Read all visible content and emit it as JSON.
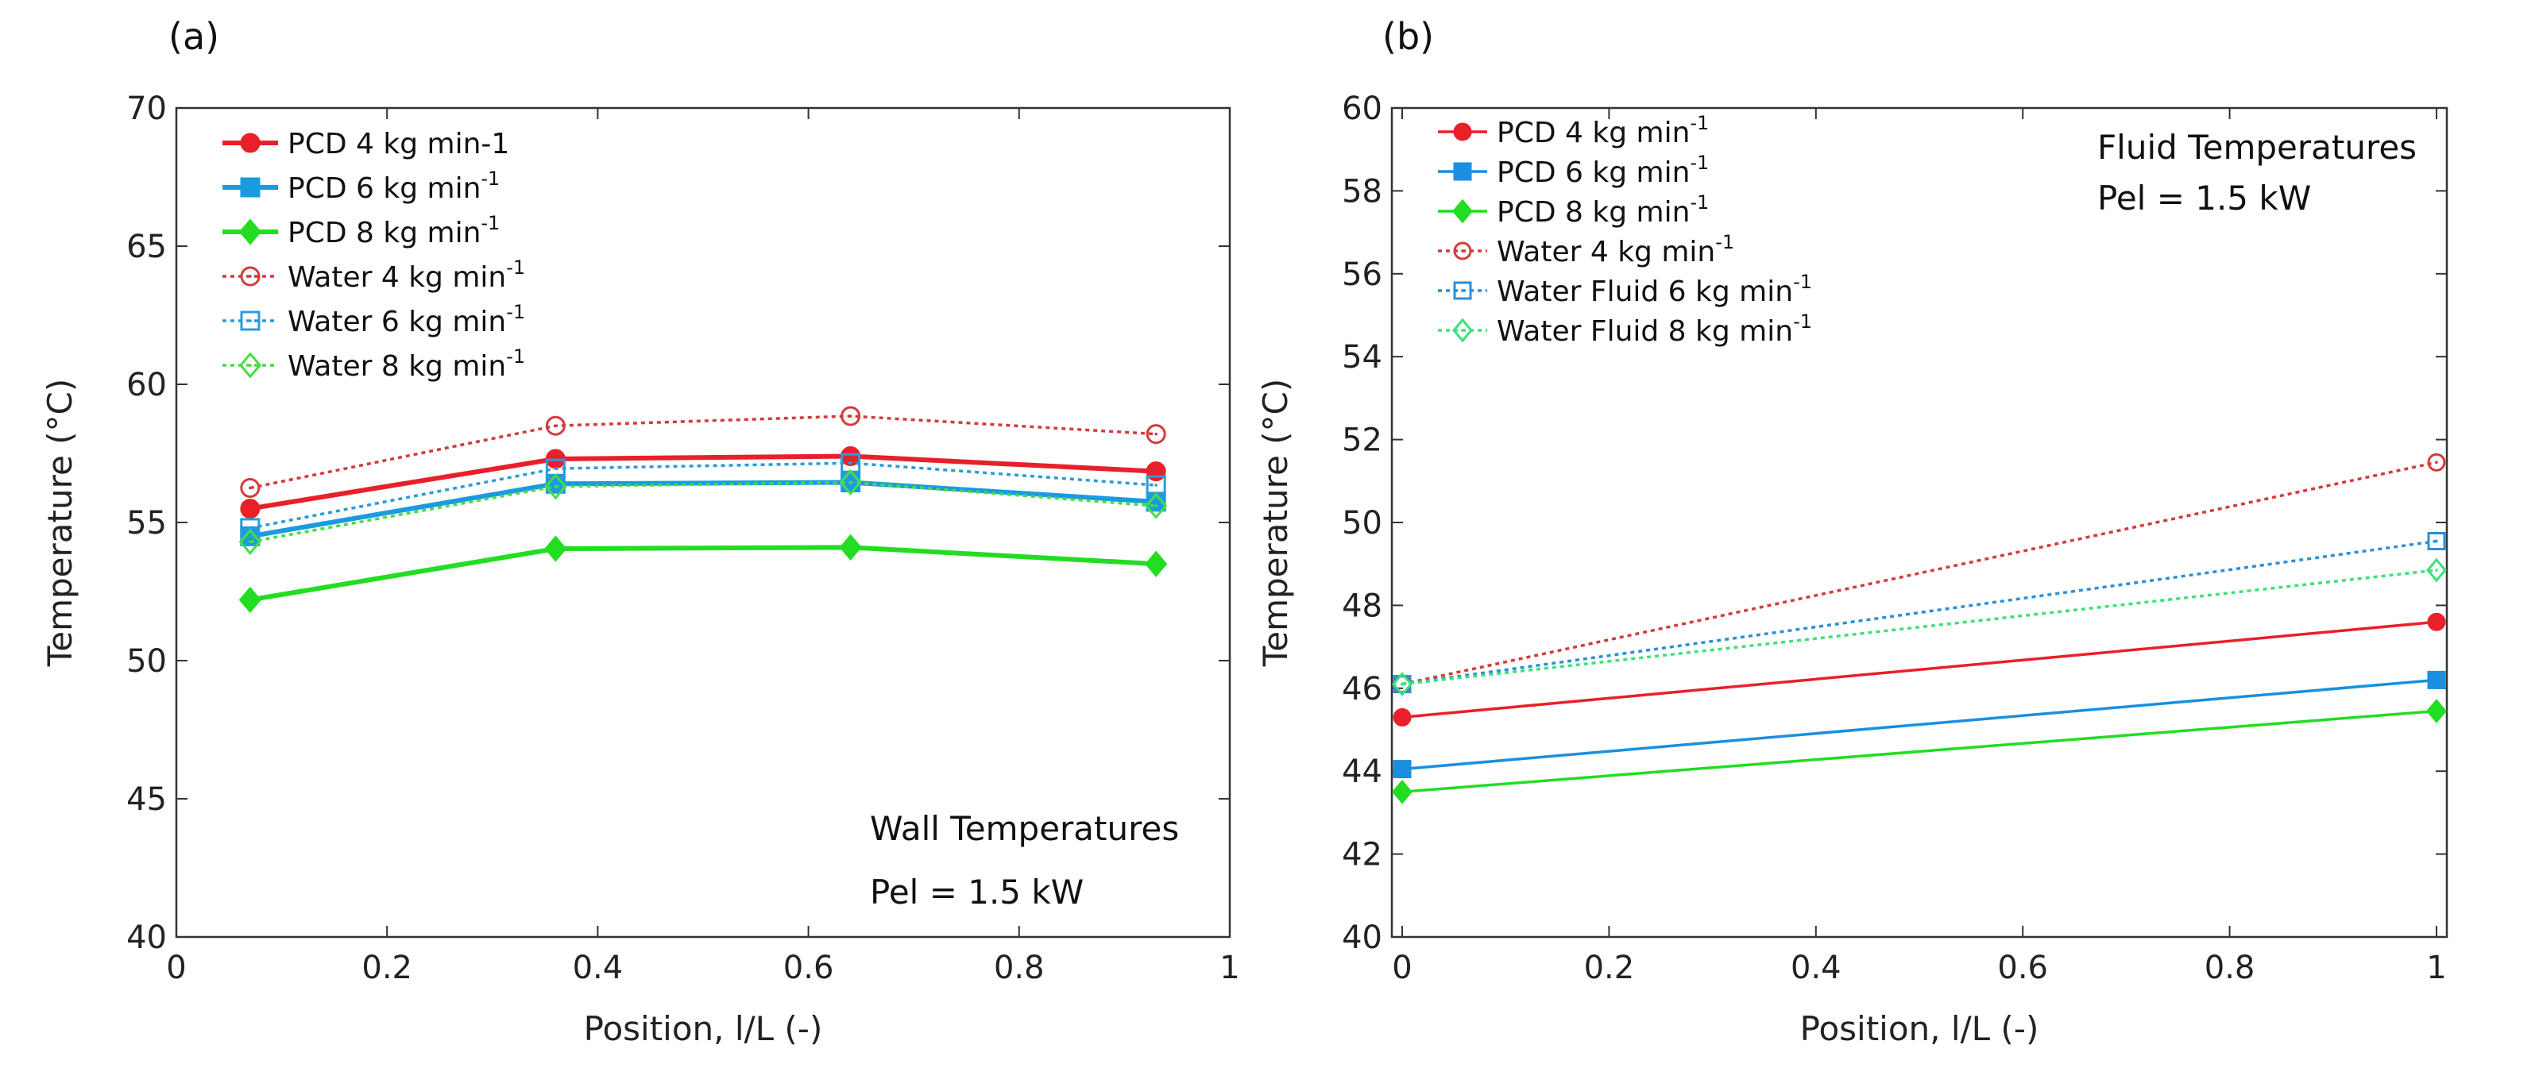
{
  "chart_data": [
    {
      "type": "line",
      "panel_label": "(a)",
      "xlabel": "Position, l/L (-)",
      "ylabel": "Temperature (°C)",
      "xlim": [
        0,
        1
      ],
      "ylim": [
        40,
        70
      ],
      "xticks": [
        0,
        0.2,
        0.4,
        0.6,
        0.8,
        1
      ],
      "yticks": [
        40,
        45,
        50,
        55,
        60,
        65,
        70
      ],
      "grid": false,
      "legend_position": "top-left",
      "annotation": [
        "Wall Temperatures",
        "Pel = 1.5 kW"
      ],
      "x": [
        0.07,
        0.36,
        0.64,
        0.93
      ],
      "series": [
        {
          "name": "PCD 4 kg min-1",
          "sup": "",
          "color": "#e8202a",
          "style": "solid",
          "marker": "circle-filled",
          "values": [
            55.5,
            57.3,
            57.4,
            56.85
          ]
        },
        {
          "name": "PCD 6 kg min",
          "sup": "-1",
          "color": "#1a9be0",
          "style": "solid",
          "marker": "square-filled",
          "values": [
            54.5,
            56.4,
            56.45,
            55.75
          ]
        },
        {
          "name": "PCD 8 kg min",
          "sup": "-1",
          "color": "#22dd22",
          "style": "solid",
          "marker": "diamond-filled",
          "values": [
            52.2,
            54.05,
            54.1,
            53.5
          ]
        },
        {
          "name": "Water 4 kg min",
          "sup": "-1",
          "color": "#d43a3a",
          "style": "dotted",
          "marker": "circle-open",
          "values": [
            56.25,
            58.5,
            58.85,
            58.2
          ]
        },
        {
          "name": "Water 6 kg min",
          "sup": "-1",
          "color": "#2a9bd8",
          "style": "dotted",
          "marker": "square-open",
          "values": [
            54.8,
            56.95,
            57.15,
            56.35
          ]
        },
        {
          "name": "Water 8 kg min",
          "sup": "-1",
          "color": "#44dd44",
          "style": "dotted",
          "marker": "diamond-open",
          "values": [
            54.3,
            56.3,
            56.45,
            55.6
          ]
        }
      ]
    },
    {
      "type": "line",
      "panel_label": "(b)",
      "xlabel": "Position, l/L (-)",
      "ylabel": "Temperature (°C)",
      "xlim": [
        -0.01,
        1.01
      ],
      "ylim": [
        40,
        60
      ],
      "xticks": [
        0,
        0.2,
        0.4,
        0.6,
        0.8,
        1
      ],
      "yticks": [
        40,
        42,
        44,
        46,
        48,
        50,
        52,
        54,
        56,
        58,
        60
      ],
      "grid": false,
      "legend_position": "top-left",
      "annotation": [
        "Fluid Temperatures",
        "Pel = 1.5 kW"
      ],
      "x": [
        0,
        1
      ],
      "series": [
        {
          "name": "PCD 4 kg min",
          "sup": "-1",
          "color": "#e8202a",
          "style": "solid",
          "marker": "circle-filled",
          "values": [
            45.3,
            47.6
          ]
        },
        {
          "name": "PCD 6 kg min",
          "sup": "-1",
          "color": "#1a8fdf",
          "style": "solid",
          "marker": "square-filled",
          "values": [
            44.05,
            46.2
          ]
        },
        {
          "name": "PCD 8 kg min",
          "sup": "-1",
          "color": "#22dd22",
          "style": "solid",
          "marker": "diamond-filled",
          "values": [
            43.5,
            45.45
          ]
        },
        {
          "name": "Water 4 kg min",
          "sup": "-1",
          "color": "#d43a3a",
          "style": "dotted",
          "marker": "circle-open",
          "values": [
            46.1,
            51.45
          ]
        },
        {
          "name": "Water Fluid 6 kg min",
          "sup": "-1",
          "color": "#2a8fd8",
          "style": "dotted",
          "marker": "square-open",
          "values": [
            46.1,
            49.55
          ]
        },
        {
          "name": "Water Fluid 8 kg min",
          "sup": "-1",
          "color": "#3ee07a",
          "style": "dotted",
          "marker": "diamond-open",
          "values": [
            46.1,
            48.85
          ]
        }
      ]
    }
  ]
}
